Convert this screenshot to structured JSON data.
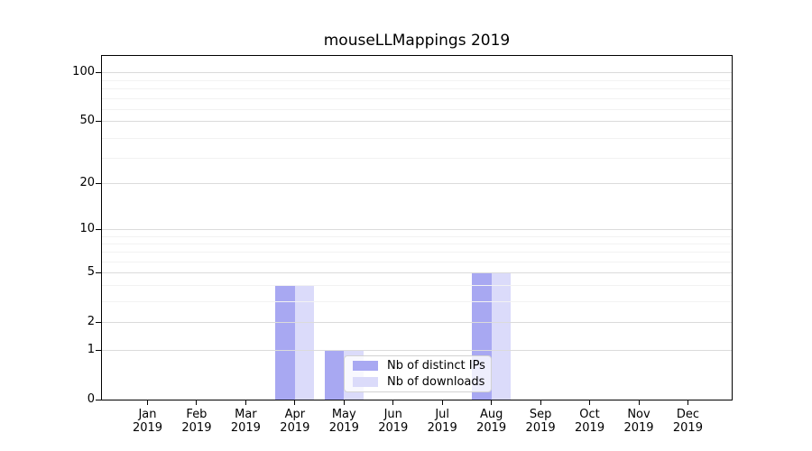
{
  "chart_data": {
    "type": "bar",
    "title": "mouseLLMappings 2019",
    "x_year": "2019",
    "categories": [
      "Jan",
      "Feb",
      "Mar",
      "Apr",
      "May",
      "Jun",
      "Jul",
      "Aug",
      "Sep",
      "Oct",
      "Nov",
      "Dec"
    ],
    "series": [
      {
        "name": "Nb of distinct IPs",
        "color": "#a8a8f2",
        "values": [
          0,
          0,
          0,
          4,
          1,
          0,
          0,
          5,
          0,
          0,
          0,
          0
        ]
      },
      {
        "name": "Nb of downloads",
        "color": "#dbdbfa",
        "values": [
          0,
          0,
          0,
          4,
          1,
          0,
          0,
          5,
          0,
          0,
          0,
          0
        ]
      }
    ],
    "y_scale": "log10(1+x)",
    "y_ticks": [
      0,
      1,
      2,
      5,
      10,
      20,
      50,
      100
    ],
    "y_minor_gridlines_1p": [
      4,
      5,
      7,
      8,
      9,
      10,
      30,
      40,
      60,
      70,
      80,
      90
    ],
    "ylim_top_value": 112,
    "grid": "on",
    "legend_position": "lower center",
    "colors": {
      "major_grid": "#dbdbdb",
      "minor_grid": "#f2f2f2",
      "spine": "#000000",
      "background": "#ffffff"
    }
  }
}
